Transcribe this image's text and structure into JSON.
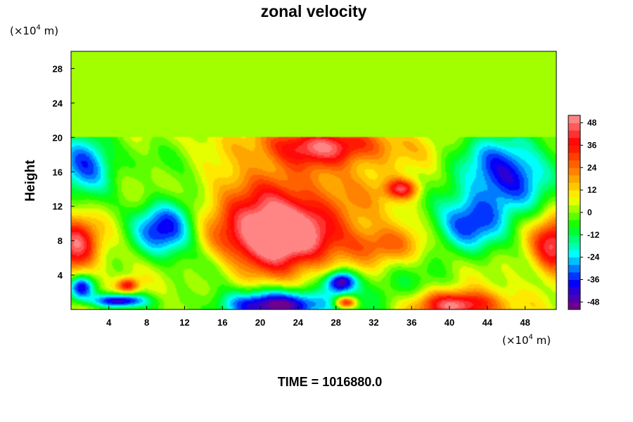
{
  "chart_data": {
    "type": "heatmap",
    "title": "zonal velocity",
    "ylabel": "Height",
    "xlabel": "",
    "x_unit": {
      "prefix": "(×10",
      "exp": "4",
      "suffix": " m)"
    },
    "y_unit": {
      "prefix": "(×10",
      "exp": "4",
      "suffix": " m)"
    },
    "xlim": [
      0,
      51.3
    ],
    "ylim": [
      0,
      30
    ],
    "x_ticks": [
      "4",
      "8",
      "12",
      "16",
      "20",
      "24",
      "28",
      "32",
      "36",
      "40",
      "44",
      "48"
    ],
    "y_ticks": [
      "4",
      "8",
      "12",
      "16",
      "20",
      "24",
      "28"
    ],
    "colorbar": {
      "range": [
        -52,
        52
      ],
      "ticks": [
        "48",
        "36",
        "24",
        "12",
        "0",
        "-12",
        "-24",
        "-36",
        "-48"
      ],
      "colors": [
        "#7f007f",
        "#0000ff",
        "#00ffff",
        "#00ff00",
        "#ffff00",
        "#ff8000",
        "#ff0000",
        "#ff9999"
      ]
    },
    "field": {
      "upper_layer_value": 0,
      "tropopause_height": 20,
      "background_value": 4,
      "features": [
        {
          "x": 21.5,
          "y": 8.5,
          "value": 50,
          "sx": 3.8,
          "sy": 2.8
        },
        {
          "x": 23,
          "y": 12,
          "value": 22,
          "sx": 7,
          "sy": 5
        },
        {
          "x": 27,
          "y": 19,
          "value": 34,
          "sx": 5,
          "sy": 1.5
        },
        {
          "x": 35,
          "y": 14,
          "value": 36,
          "sx": 1.2,
          "sy": 0.8
        },
        {
          "x": 10,
          "y": 9.5,
          "value": -45,
          "sx": 2.5,
          "sy": 2.5
        },
        {
          "x": 46,
          "y": 16,
          "value": -42,
          "sx": 3.5,
          "sy": 3.2
        },
        {
          "x": 42,
          "y": 10,
          "value": -35,
          "sx": 3,
          "sy": 2.5
        },
        {
          "x": 1.5,
          "y": 17,
          "value": -40,
          "sx": 2.2,
          "sy": 2.5
        },
        {
          "x": 0.5,
          "y": 7.5,
          "value": 42,
          "sx": 1.6,
          "sy": 2.2
        },
        {
          "x": 51,
          "y": 7.5,
          "value": 42,
          "sx": 1.6,
          "sy": 2.2
        },
        {
          "x": 22,
          "y": 0.5,
          "value": -55,
          "sx": 4.5,
          "sy": 1.3
        },
        {
          "x": 41,
          "y": 0.5,
          "value": 48,
          "sx": 3,
          "sy": 1.2
        },
        {
          "x": 28.5,
          "y": 3.2,
          "value": -50,
          "sx": 1.2,
          "sy": 0.9
        },
        {
          "x": 5,
          "y": 1,
          "value": -50,
          "sx": 2,
          "sy": 0.6
        },
        {
          "x": 1,
          "y": 2.5,
          "value": -45,
          "sx": 1,
          "sy": 1
        },
        {
          "x": 6,
          "y": 2.8,
          "value": 36,
          "sx": 0.8,
          "sy": 0.6
        },
        {
          "x": 29,
          "y": 0.8,
          "value": 45,
          "sx": 0.8,
          "sy": 0.5
        },
        {
          "x": 34,
          "y": 3,
          "value": -12,
          "sx": 4,
          "sy": 2
        },
        {
          "x": 33,
          "y": 7.5,
          "value": 20,
          "sx": 3,
          "sy": 1.5
        },
        {
          "x": 12,
          "y": 17,
          "value": -10,
          "sx": 3,
          "sy": 2
        },
        {
          "x": 16,
          "y": 5,
          "value": -8,
          "sx": 3,
          "sy": 2
        }
      ]
    }
  },
  "footer": {
    "time_label": "TIME = 1016880.0"
  }
}
